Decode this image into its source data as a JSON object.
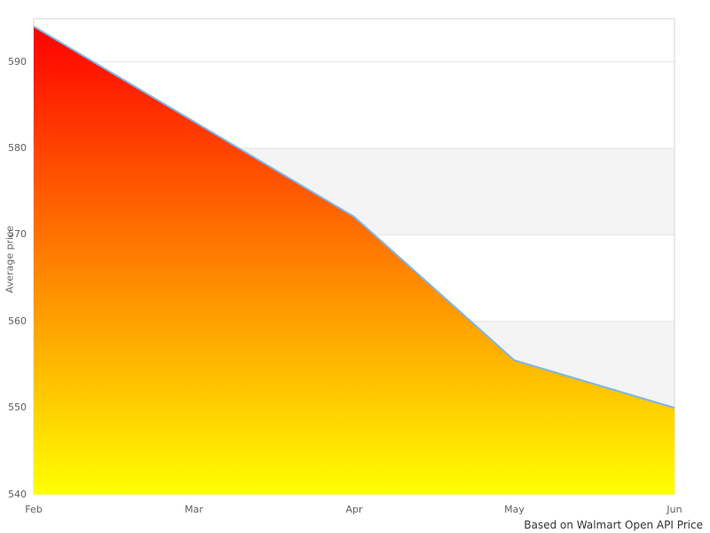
{
  "chart_data": {
    "type": "area",
    "categories": [
      "Feb",
      "Mar",
      "Apr",
      "May",
      "Jun"
    ],
    "values": [
      594.1,
      583.1,
      572.1,
      555.5,
      550
    ],
    "title": "",
    "xlabel": "",
    "ylabel": "Average price",
    "ylim": [
      540,
      595
    ],
    "yticks": [
      540,
      550,
      560,
      570,
      580,
      590
    ],
    "grid": true,
    "legend": "none",
    "alternate_bands": [
      [
        580,
        570
      ],
      [
        560,
        550
      ]
    ],
    "caption": "Based on Walmart Open API Price",
    "colors": {
      "line": "#7cb5ec",
      "fill_top": "#ff0000",
      "fill_bottom": "#ffff00",
      "band": "#f4f4f4",
      "gridline": "#e6e6e6",
      "border": "#d6d6d6",
      "tick_label": "#606060",
      "axis_title": "#666666",
      "caption": "#333333"
    }
  }
}
